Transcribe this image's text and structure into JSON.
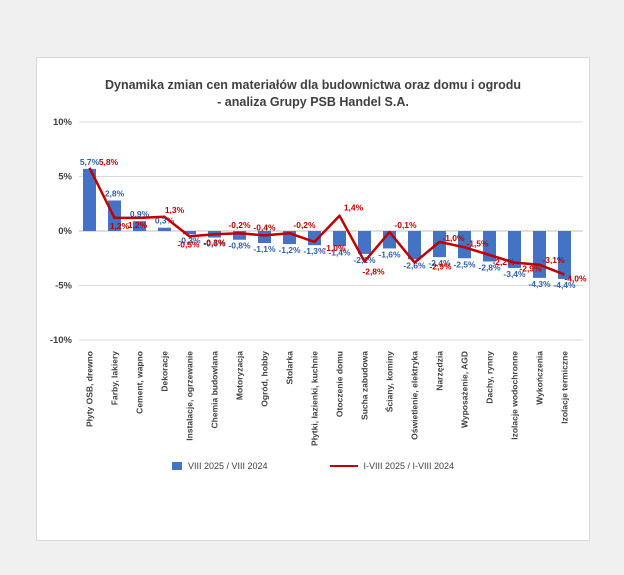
{
  "title": {
    "line1": "Dynamika zmian cen materiałów dla budownictwa oraz domu i ogrodu",
    "line2": "- analiza Grupy PSB Handel S.A."
  },
  "y_axis": {
    "ticks": [
      {
        "label": "10%",
        "value": 10
      },
      {
        "label": "5%",
        "value": 5
      },
      {
        "label": "0%",
        "value": 0
      },
      {
        "label": "-5%",
        "value": -5
      },
      {
        "label": "-10%",
        "value": -10
      }
    ]
  },
  "chart_data": {
    "type": "bar",
    "title": "Dynamika zmian cen materiałów dla budownictwa oraz domu i ogrodu - analiza Grupy PSB Handel S.A.",
    "categories": [
      "Płyty OSB, drewno",
      "Farby, lakiery",
      "Cement, wapno",
      "Dekoracje",
      "Instalacje, ogrzewanie",
      "Chemia budowlana",
      "Motoryzacja",
      "Ogród, hobby",
      "Stolarka",
      "Płytki, łazienki, kuchnie",
      "Otoczenie domu",
      "Sucha zabudowa",
      "Ściany, kominy",
      "Oświetlenie, elektryka",
      "Narzędzia",
      "Wyposażenie, AGD",
      "Dachy, rynny",
      "Izolacje wodochronne",
      "Wykończenia",
      "Izolacje termiczne"
    ],
    "series": [
      {
        "name": "VIII 2025 / VIII 2024",
        "type": "bar",
        "color": "#4472C4",
        "label_color": "#3060A8",
        "values": [
          5.7,
          2.8,
          0.9,
          0.3,
          -0.3,
          -0.6,
          -0.8,
          -1.1,
          -1.2,
          -1.3,
          -1.4,
          -2.1,
          -1.6,
          -2.6,
          -2.4,
          -2.5,
          -2.8,
          -3.4,
          -4.3,
          -4.4
        ],
        "labels": [
          "5,7%",
          "2,8%",
          "0,9%",
          "0,3%",
          "-0,3%",
          "-0,6%",
          "-0,8%",
          "-1,1%",
          "-1,2%",
          "-1,3%",
          "-1,4%",
          "-2,1%",
          "-1,6%",
          "-2,6%",
          "-2,4%",
          "-2,5%",
          "-2,8%",
          "-3,4%",
          "-4,3%",
          "-4,4%"
        ]
      },
      {
        "name": "I-VIII 2025 / I-VIII 2024",
        "type": "line",
        "color": "#C00000",
        "label_color": "#C00000",
        "values": [
          5.8,
          1.2,
          1.2,
          1.3,
          -0.5,
          -0.3,
          -0.2,
          -0.4,
          -0.2,
          -1.0,
          1.4,
          -2.8,
          -0.1,
          -2.9,
          -1.0,
          -1.5,
          -2.2,
          -2.9,
          -3.1,
          -4.0
        ],
        "labels": [
          "5,8%",
          "1,2%",
          "1,2%",
          "1,3%",
          "-0,5%",
          "-0,3%",
          "-0,2%",
          "-0,4%",
          "-0,2%",
          "-1,0%",
          "1,4%",
          "-2,8%",
          "-0,1%",
          "-2,9%",
          "-1,0%",
          "-1,5%",
          "-2,2%",
          "-2,9%",
          "-3,1%",
          "-4,0%"
        ]
      }
    ],
    "ylim": [
      -10,
      10
    ],
    "grid": true,
    "legend_position": "bottom"
  }
}
